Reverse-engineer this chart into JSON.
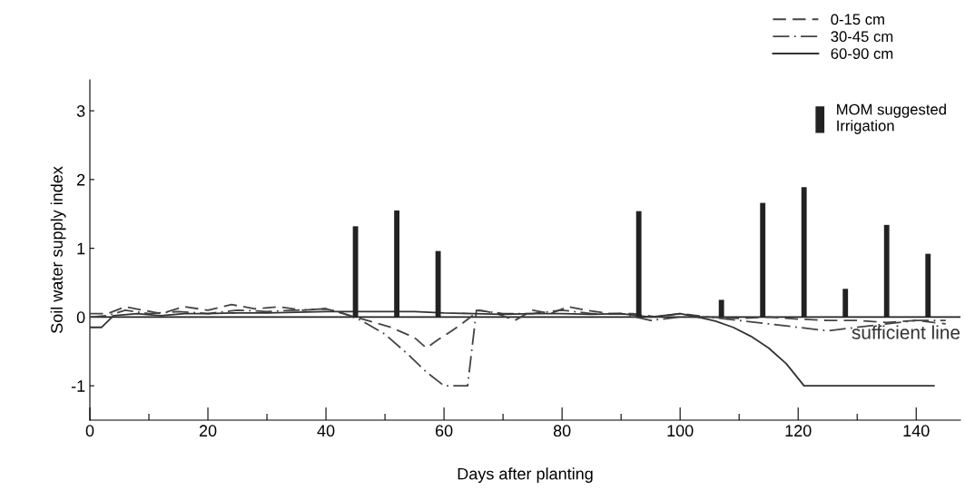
{
  "chart_data": {
    "type": "line",
    "xlabel": "Days after planting",
    "ylabel": "Soil water supply index",
    "xlim": [
      0,
      147.5
    ],
    "ylim": [
      -1.5,
      3.45
    ],
    "xticks": [
      0,
      {
        "value": 10,
        "label": null
      },
      20,
      {
        "value": 30,
        "label": null
      },
      40,
      {
        "value": 50,
        "label": null
      },
      60,
      {
        "value": 70,
        "label": null
      },
      80,
      {
        "value": 90,
        "label": null
      },
      100,
      {
        "value": 110,
        "label": null
      },
      120,
      {
        "value": 130,
        "label": null
      },
      140
    ],
    "yticks": [
      {
        "value": -1,
        "label": "-1"
      },
      0,
      1,
      2,
      3
    ],
    "grid": false,
    "legend": "top right",
    "marker": "none",
    "ref_lines": [
      {
        "axis": "y",
        "value": 0,
        "label": "sufficient line",
        "color": "#222222",
        "line_style": "solid"
      }
    ],
    "series": [
      {
        "name": "0-15 cm",
        "line_style": "dashed",
        "color": "#444444",
        "x": [
          0,
          3,
          6,
          9,
          12,
          16,
          20,
          24,
          28,
          32,
          36,
          40,
          43,
          47,
          51,
          55,
          57,
          59,
          61,
          63,
          66,
          69,
          72,
          75,
          78,
          81,
          84,
          88,
          92,
          96,
          100,
          105,
          110,
          115,
          120,
          125,
          130,
          135,
          140,
          145
        ],
        "values": [
          0.05,
          0.05,
          0.15,
          0.1,
          0.05,
          0.15,
          0.1,
          0.18,
          0.12,
          0.15,
          0.1,
          0.12,
          0.05,
          -0.05,
          -0.15,
          -0.3,
          -0.45,
          -0.33,
          -0.22,
          -0.1,
          0.1,
          0.05,
          -0.05,
          0.1,
          0.05,
          0.15,
          0.1,
          0.05,
          0.05,
          0.0,
          0.05,
          0.0,
          -0.02,
          0.0,
          -0.03,
          -0.05,
          -0.05,
          -0.08,
          -0.05,
          -0.1
        ]
      },
      {
        "name": "30-45 cm",
        "line_style": "dashdot",
        "color": "#444444",
        "x": [
          0,
          3,
          6,
          10,
          15,
          20,
          25,
          30,
          35,
          40,
          43,
          46,
          50,
          54,
          57,
          60,
          62,
          64,
          65.5,
          70,
          75,
          80,
          85,
          90,
          95,
          100,
          105,
          110,
          115,
          120,
          125,
          130,
          135,
          140,
          145
        ],
        "values": [
          0.0,
          0.02,
          0.1,
          0.05,
          0.08,
          0.05,
          0.1,
          0.08,
          0.1,
          0.12,
          0.05,
          -0.05,
          -0.25,
          -0.55,
          -0.8,
          -1.0,
          -1.0,
          -1.0,
          0.1,
          0.05,
          0.05,
          0.1,
          0.05,
          0.05,
          -0.05,
          0.0,
          0.0,
          -0.05,
          -0.1,
          -0.15,
          -0.2,
          -0.15,
          -0.1,
          -0.05,
          -0.05
        ]
      },
      {
        "name": "60-90 cm",
        "line_style": "solid",
        "color": "#333333",
        "x": [
          0,
          2,
          4,
          8,
          12,
          16,
          20,
          25,
          30,
          35,
          40,
          45,
          50,
          55,
          60,
          65,
          70,
          75,
          80,
          85,
          90,
          95,
          100,
          103,
          106,
          109,
          112,
          115,
          118,
          121,
          130,
          143
        ],
        "values": [
          -0.15,
          -0.15,
          0.02,
          0.05,
          0.02,
          0.05,
          0.05,
          0.06,
          0.06,
          0.07,
          0.08,
          0.08,
          0.08,
          0.08,
          0.06,
          0.05,
          0.04,
          0.05,
          0.05,
          0.04,
          0.05,
          0.0,
          0.05,
          0.0,
          -0.06,
          -0.15,
          -0.28,
          -0.45,
          -0.68,
          -1.0,
          -1.0,
          -1.0
        ]
      },
      {
        "name": "MOM suggested\nIrrigation",
        "type": "bar",
        "color": "#222222",
        "x": [
          45,
          52,
          59,
          93,
          107,
          114,
          121,
          128,
          135,
          142
        ],
        "values": [
          1.32,
          1.55,
          0.96,
          1.54,
          0.25,
          1.66,
          1.89,
          0.41,
          1.34,
          0.92
        ]
      }
    ]
  }
}
